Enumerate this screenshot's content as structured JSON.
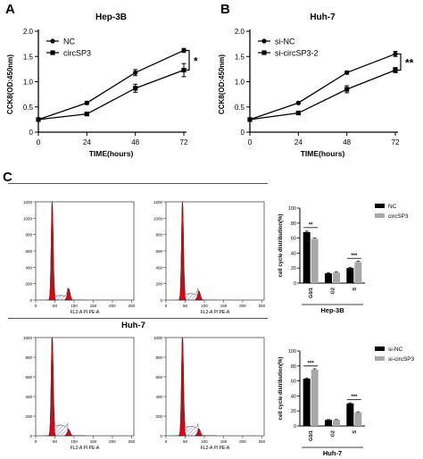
{
  "panels": {
    "a": "A",
    "b": "B",
    "c": "C"
  },
  "colors": {
    "red": "#e3000f",
    "hatch": "#5a5fa8",
    "black": "#000000",
    "grey": "#a8a8a8"
  },
  "flow": {
    "x_ticks": [
      "0",
      "50",
      "100",
      "150",
      "200",
      "250"
    ],
    "x_label": "FL2-A PI PE-A",
    "top_y_ticks": [
      "0",
      "200",
      "400",
      "600",
      "800",
      "1000",
      "1200"
    ],
    "bottom_y_ticks": [
      "0",
      "200",
      "400",
      "600",
      "800",
      "1000"
    ]
  },
  "chart_data": [
    {
      "type": "line",
      "title": "Hep-3B",
      "xlabel": "TIME(hours)",
      "ylabel": "CCK8(OD:450nm)",
      "x": [
        0,
        24,
        48,
        72
      ],
      "xlim": [
        0,
        72
      ],
      "ylim": [
        0,
        2.0
      ],
      "y_ticks": [
        "0",
        "0.5",
        "1.0",
        "1.5",
        "2.0"
      ],
      "x_ticks": [
        "0",
        "24",
        "48",
        "72"
      ],
      "series": [
        {
          "name": "NC",
          "marker": "circle",
          "values": [
            0.25,
            0.58,
            1.18,
            1.62
          ],
          "err": [
            0.02,
            0.03,
            0.06,
            0.04
          ]
        },
        {
          "name": "circSP3",
          "marker": "square",
          "values": [
            0.25,
            0.36,
            0.87,
            1.23
          ],
          "err": [
            0.02,
            0.02,
            0.08,
            0.13
          ]
        }
      ],
      "annotation": "*",
      "legend": "top-left"
    },
    {
      "type": "line",
      "title": "Huh-7",
      "xlabel": "TIME(hours)",
      "ylabel": "CCK8(OD:450nm)",
      "x": [
        0,
        24,
        48,
        72
      ],
      "xlim": [
        0,
        72
      ],
      "ylim": [
        0,
        2.0
      ],
      "y_ticks": [
        "0",
        "0.5",
        "1.0",
        "1.5",
        "2.0"
      ],
      "x_ticks": [
        "0",
        "24",
        "48",
        "72"
      ],
      "series": [
        {
          "name": "si-NC",
          "marker": "circle",
          "values": [
            0.25,
            0.58,
            1.18,
            1.55
          ],
          "err": [
            0.02,
            0.02,
            0.03,
            0.05
          ]
        },
        {
          "name": "si-circSP3-2",
          "marker": "square",
          "values": [
            0.25,
            0.38,
            0.85,
            1.23
          ],
          "err": [
            0.02,
            0.02,
            0.07,
            0.05
          ]
        }
      ],
      "annotation": "**",
      "legend": "top-left"
    },
    {
      "type": "bar",
      "title": "",
      "group_label": "Hep-3B",
      "ylabel": "cell cycle distribution(%)",
      "categories": [
        "G0/1",
        "G2",
        "S"
      ],
      "ylim": [
        0,
        100
      ],
      "y_ticks": [
        "0",
        "20",
        "40",
        "60",
        "80",
        "100"
      ],
      "series": [
        {
          "name": "NC",
          "color": "#000000",
          "values": [
            68,
            13,
            20
          ],
          "err": [
            1.2,
            0.8,
            0.8
          ]
        },
        {
          "name": "circSP3",
          "color": "#a8a8a8",
          "values": [
            59,
            14,
            28
          ],
          "err": [
            1.0,
            0.8,
            1.0
          ]
        }
      ],
      "significance": [
        "**",
        "",
        "***"
      ],
      "legend": "top-right"
    },
    {
      "type": "bar",
      "title": "",
      "group_label": "Huh-7",
      "ylabel": "cell cycle distribution(%)",
      "categories": [
        "G0/1",
        "G2",
        "S"
      ],
      "ylim": [
        0,
        100
      ],
      "y_ticks": [
        "0",
        "20",
        "40",
        "60",
        "80",
        "100"
      ],
      "series": [
        {
          "name": "si-NC",
          "color": "#000000",
          "values": [
            63,
            8,
            30
          ],
          "err": [
            1.0,
            0.6,
            0.8
          ]
        },
        {
          "name": "si-circSP3",
          "color": "#a8a8a8",
          "values": [
            75,
            8,
            18
          ],
          "err": [
            1.2,
            0.6,
            0.8
          ]
        }
      ],
      "significance": [
        "***",
        "",
        "***"
      ],
      "legend": "top-right"
    }
  ]
}
